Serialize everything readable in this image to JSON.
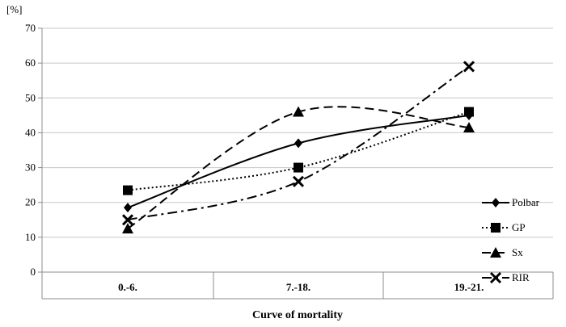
{
  "chart_data": {
    "type": "line",
    "title": "",
    "xlabel": "Curve of mortality",
    "ylabel": "[%]",
    "categories": [
      "0.-6.",
      "7.-18.",
      "19.-21."
    ],
    "ylim": [
      0,
      70
    ],
    "yticks": [
      0,
      10,
      20,
      30,
      40,
      50,
      60,
      70
    ],
    "grid": "horizontal",
    "legend_placement": "right",
    "series": [
      {
        "name": "Polbar",
        "values": [
          18.5,
          37,
          45
        ],
        "style": "solid",
        "marker": "diamond-icon"
      },
      {
        "name": "GP",
        "values": [
          23.5,
          30,
          46
        ],
        "style": "dotted",
        "marker": "square-icon"
      },
      {
        "name": "Sx",
        "values": [
          12.5,
          46,
          41.5
        ],
        "style": "dashed",
        "marker": "triangle-icon"
      },
      {
        "name": "RIR",
        "values": [
          15,
          26,
          59
        ],
        "style": "dash-dot",
        "marker": "x-icon"
      }
    ]
  }
}
